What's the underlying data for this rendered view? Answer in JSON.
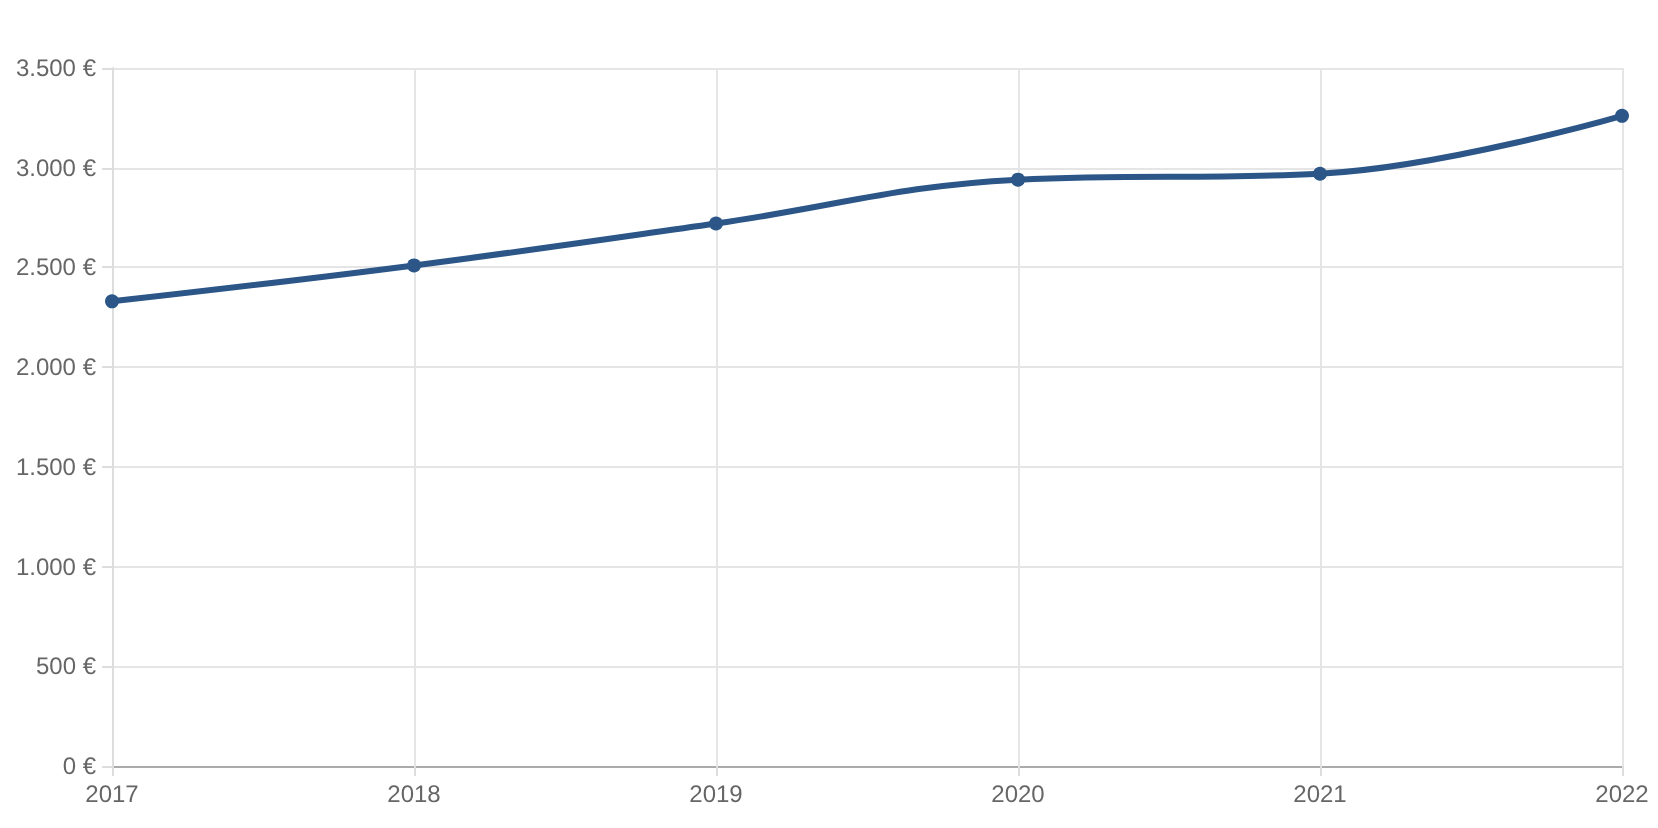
{
  "chart_data": {
    "type": "line",
    "categories": [
      "2017",
      "2018",
      "2019",
      "2020",
      "2021",
      "2022"
    ],
    "series": [
      {
        "color": "#2b5687",
        "values": [
          2330,
          2510,
          2720,
          2940,
          2970,
          3260
        ]
      }
    ],
    "ylim": [
      0,
      3500
    ],
    "yticks": [
      {
        "value": 0,
        "label": "0 €"
      },
      {
        "value": 500,
        "label": "500 €"
      },
      {
        "value": 1000,
        "label": "1.000 €"
      },
      {
        "value": 1500,
        "label": "1.500 €"
      },
      {
        "value": 2000,
        "label": "2.000 €"
      },
      {
        "value": 2500,
        "label": "2.500 €"
      },
      {
        "value": 3000,
        "label": "3.000 €"
      },
      {
        "value": 3500,
        "label": "3.500 €"
      }
    ],
    "grid": true,
    "marker": "circle",
    "line_style": "solid"
  }
}
